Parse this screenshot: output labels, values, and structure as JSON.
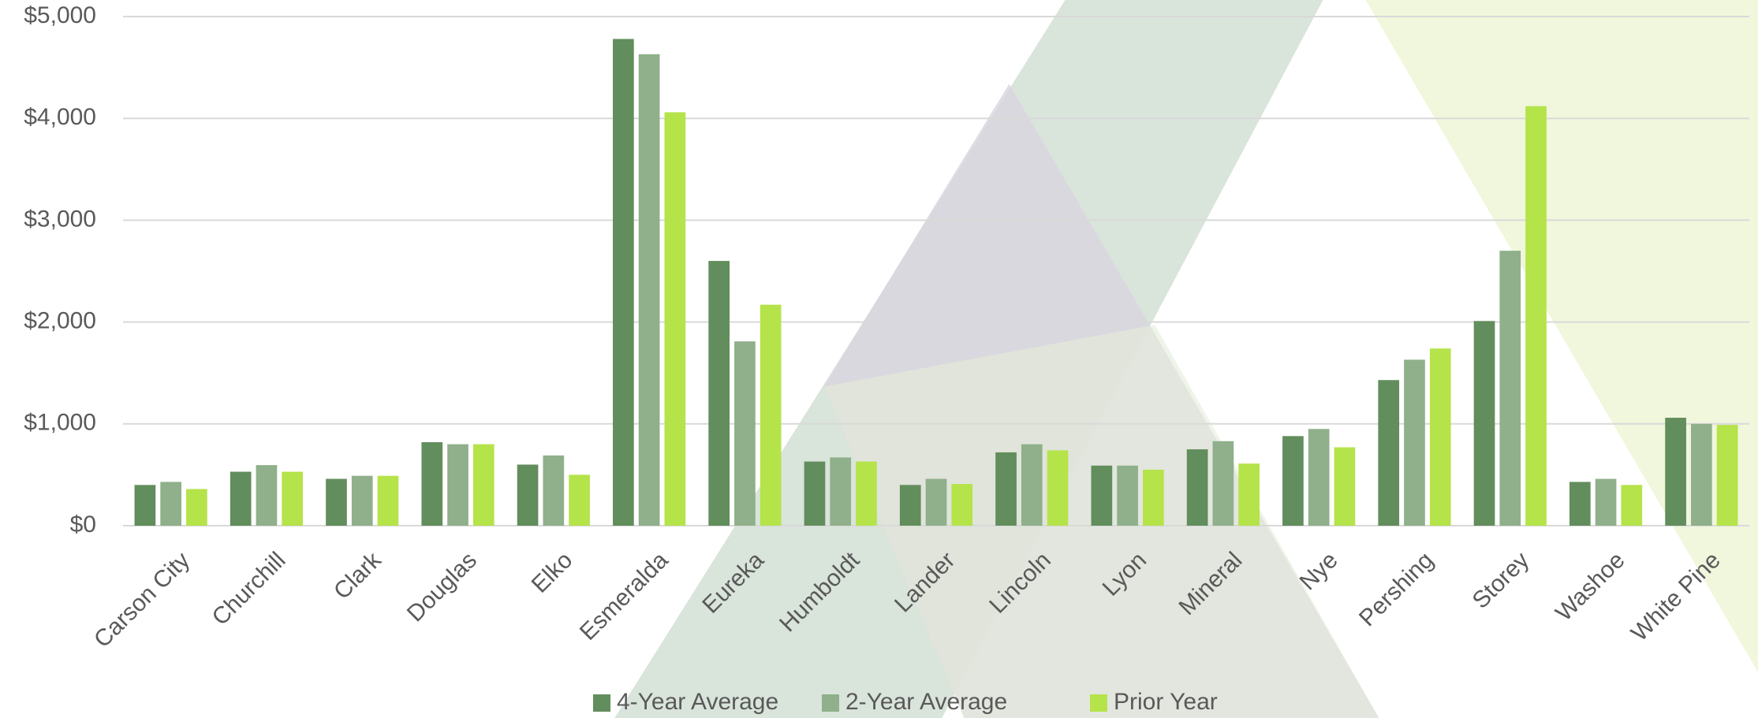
{
  "chart_data": {
    "type": "bar",
    "categories": [
      "Carson City",
      "Churchill",
      "Clark",
      "Douglas",
      "Elko",
      "Esmeralda",
      "Eureka",
      "Humboldt",
      "Lander",
      "Lincoln",
      "Lyon",
      "Mineral",
      "Nye",
      "Pershing",
      "Storey",
      "Washoe",
      "White Pine"
    ],
    "series": [
      {
        "name": "4-Year Average",
        "color": "#628d5c",
        "values": [
          400,
          530,
          460,
          820,
          600,
          4780,
          2600,
          630,
          400,
          720,
          590,
          750,
          880,
          1430,
          2010,
          430,
          1060
        ]
      },
      {
        "name": "2-Year Average",
        "color": "#8fb08a",
        "values": [
          430,
          595,
          490,
          800,
          690,
          4630,
          1810,
          670,
          460,
          800,
          590,
          830,
          950,
          1630,
          2700,
          460,
          1000
        ]
      },
      {
        "name": "Prior Year",
        "color": "#b5e34a",
        "values": [
          360,
          530,
          490,
          800,
          500,
          4060,
          2170,
          630,
          410,
          740,
          550,
          610,
          770,
          1740,
          4120,
          400,
          990
        ]
      }
    ],
    "ylim": [
      0,
      5000
    ],
    "yticks": [
      {
        "value": 0,
        "label": "$0"
      },
      {
        "value": 1000,
        "label": "$1,000"
      },
      {
        "value": 2000,
        "label": "$2,000"
      },
      {
        "value": 3000,
        "label": "$3,000"
      },
      {
        "value": 4000,
        "label": "$4,000"
      },
      {
        "value": 5000,
        "label": "$5,000"
      }
    ],
    "grid": true,
    "legend": "bottom"
  }
}
